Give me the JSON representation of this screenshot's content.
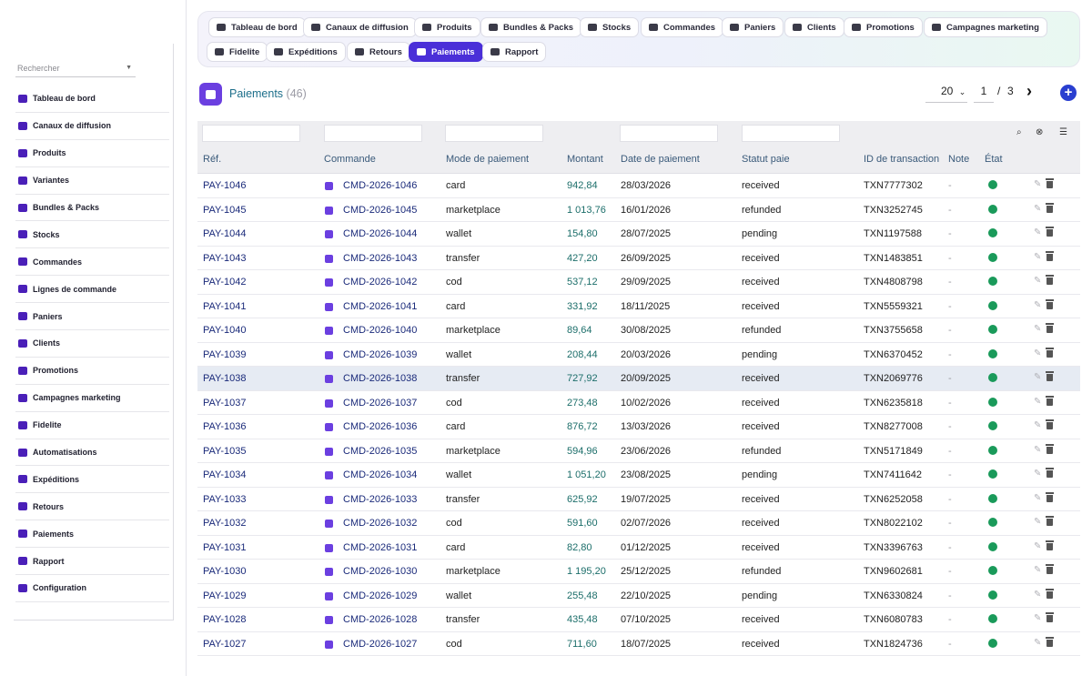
{
  "sidebar": {
    "search_placeholder": "Rechercher",
    "items": [
      {
        "label": "Tableau de bord",
        "icon": "dashboard-icon"
      },
      {
        "label": "Canaux de diffusion",
        "icon": "channels-icon"
      },
      {
        "label": "Produits",
        "icon": "products-icon"
      },
      {
        "label": "Variantes",
        "icon": "variants-icon"
      },
      {
        "label": "Bundles & Packs",
        "icon": "bundles-icon"
      },
      {
        "label": "Stocks",
        "icon": "stocks-icon"
      },
      {
        "label": "Commandes",
        "icon": "cart-icon"
      },
      {
        "label": "Lignes de commande",
        "icon": "list-icon"
      },
      {
        "label": "Paniers",
        "icon": "basket-icon"
      },
      {
        "label": "Clients",
        "icon": "user-icon"
      },
      {
        "label": "Promotions",
        "icon": "tag-icon"
      },
      {
        "label": "Campagnes marketing",
        "icon": "megaphone-icon"
      },
      {
        "label": "Fidelite",
        "icon": "award-icon"
      },
      {
        "label": "Automatisations",
        "icon": "robot-icon"
      },
      {
        "label": "Expéditions",
        "icon": "truck-icon"
      },
      {
        "label": "Retours",
        "icon": "undo-icon"
      },
      {
        "label": "Paiements",
        "icon": "credit-card-icon"
      },
      {
        "label": "Rapport",
        "icon": "chart-pie-icon"
      },
      {
        "label": "Configuration",
        "icon": "gear-icon"
      }
    ]
  },
  "tabs": [
    {
      "label": "Tableau de bord",
      "icon": "dashboard-icon"
    },
    {
      "label": "Canaux de diffusion",
      "icon": "channels-icon"
    },
    {
      "label": "Produits",
      "icon": "products-icon"
    },
    {
      "label": "Bundles & Packs",
      "icon": "bundles-icon"
    },
    {
      "label": "Stocks",
      "icon": "stocks-icon"
    },
    {
      "label": "Commandes",
      "icon": "cart-icon"
    },
    {
      "label": "Paniers",
      "icon": "basket-icon"
    },
    {
      "label": "Clients",
      "icon": "user-icon"
    },
    {
      "label": "Promotions",
      "icon": "tag-icon"
    },
    {
      "label": "Campagnes marketing",
      "icon": "megaphone-icon"
    },
    {
      "label": "Fidelite",
      "icon": "award-icon"
    },
    {
      "label": "Expéditions",
      "icon": "truck-icon"
    },
    {
      "label": "Retours",
      "icon": "undo-icon"
    },
    {
      "label": "Paiements",
      "icon": "credit-card-icon",
      "active": true
    },
    {
      "label": "Rapport",
      "icon": "chart-pie-icon"
    }
  ],
  "header": {
    "title": "Paiements",
    "count": "(46)",
    "per_page": "20",
    "page_current": "1",
    "page_sep": "/",
    "page_total": "3",
    "next": "›",
    "add": "+"
  },
  "table": {
    "columns": [
      "Réf.",
      "Commande",
      "Mode de paiement",
      "Montant",
      "Date de paiement",
      "Statut paie",
      "ID de transaction",
      "Note",
      "État"
    ],
    "rows": [
      {
        "ref": "PAY-1046",
        "order": "CMD-2026-1046",
        "mode": "card",
        "amount": "942,84",
        "date": "28/03/2026",
        "status": "received",
        "txn": "TXN7777302",
        "note": "-"
      },
      {
        "ref": "PAY-1045",
        "order": "CMD-2026-1045",
        "mode": "marketplace",
        "amount": "1 013,76",
        "date": "16/01/2026",
        "status": "refunded",
        "txn": "TXN3252745",
        "note": "-"
      },
      {
        "ref": "PAY-1044",
        "order": "CMD-2026-1044",
        "mode": "wallet",
        "amount": "154,80",
        "date": "28/07/2025",
        "status": "pending",
        "txn": "TXN1197588",
        "note": "-"
      },
      {
        "ref": "PAY-1043",
        "order": "CMD-2026-1043",
        "mode": "transfer",
        "amount": "427,20",
        "date": "26/09/2025",
        "status": "received",
        "txn": "TXN1483851",
        "note": "-"
      },
      {
        "ref": "PAY-1042",
        "order": "CMD-2026-1042",
        "mode": "cod",
        "amount": "537,12",
        "date": "29/09/2025",
        "status": "received",
        "txn": "TXN4808798",
        "note": "-"
      },
      {
        "ref": "PAY-1041",
        "order": "CMD-2026-1041",
        "mode": "card",
        "amount": "331,92",
        "date": "18/11/2025",
        "status": "received",
        "txn": "TXN5559321",
        "note": "-"
      },
      {
        "ref": "PAY-1040",
        "order": "CMD-2026-1040",
        "mode": "marketplace",
        "amount": "89,64",
        "date": "30/08/2025",
        "status": "refunded",
        "txn": "TXN3755658",
        "note": "-"
      },
      {
        "ref": "PAY-1039",
        "order": "CMD-2026-1039",
        "mode": "wallet",
        "amount": "208,44",
        "date": "20/03/2026",
        "status": "pending",
        "txn": "TXN6370452",
        "note": "-"
      },
      {
        "ref": "PAY-1038",
        "order": "CMD-2026-1038",
        "mode": "transfer",
        "amount": "727,92",
        "date": "20/09/2025",
        "status": "received",
        "txn": "TXN2069776",
        "note": "-",
        "highlight": true
      },
      {
        "ref": "PAY-1037",
        "order": "CMD-2026-1037",
        "mode": "cod",
        "amount": "273,48",
        "date": "10/02/2026",
        "status": "received",
        "txn": "TXN6235818",
        "note": "-"
      },
      {
        "ref": "PAY-1036",
        "order": "CMD-2026-1036",
        "mode": "card",
        "amount": "876,72",
        "date": "13/03/2026",
        "status": "received",
        "txn": "TXN8277008",
        "note": "-"
      },
      {
        "ref": "PAY-1035",
        "order": "CMD-2026-1035",
        "mode": "marketplace",
        "amount": "594,96",
        "date": "23/06/2026",
        "status": "refunded",
        "txn": "TXN5171849",
        "note": "-"
      },
      {
        "ref": "PAY-1034",
        "order": "CMD-2026-1034",
        "mode": "wallet",
        "amount": "1 051,20",
        "date": "23/08/2025",
        "status": "pending",
        "txn": "TXN7411642",
        "note": "-"
      },
      {
        "ref": "PAY-1033",
        "order": "CMD-2026-1033",
        "mode": "transfer",
        "amount": "625,92",
        "date": "19/07/2025",
        "status": "received",
        "txn": "TXN6252058",
        "note": "-"
      },
      {
        "ref": "PAY-1032",
        "order": "CMD-2026-1032",
        "mode": "cod",
        "amount": "591,60",
        "date": "02/07/2026",
        "status": "received",
        "txn": "TXN8022102",
        "note": "-"
      },
      {
        "ref": "PAY-1031",
        "order": "CMD-2026-1031",
        "mode": "card",
        "amount": "82,80",
        "date": "01/12/2025",
        "status": "received",
        "txn": "TXN3396763",
        "note": "-"
      },
      {
        "ref": "PAY-1030",
        "order": "CMD-2026-1030",
        "mode": "marketplace",
        "amount": "1 195,20",
        "date": "25/12/2025",
        "status": "refunded",
        "txn": "TXN9602681",
        "note": "-"
      },
      {
        "ref": "PAY-1029",
        "order": "CMD-2026-1029",
        "mode": "wallet",
        "amount": "255,48",
        "date": "22/10/2025",
        "status": "pending",
        "txn": "TXN6330824",
        "note": "-"
      },
      {
        "ref": "PAY-1028",
        "order": "CMD-2026-1028",
        "mode": "transfer",
        "amount": "435,48",
        "date": "07/10/2025",
        "status": "received",
        "txn": "TXN6080783",
        "note": "-"
      },
      {
        "ref": "PAY-1027",
        "order": "CMD-2026-1027",
        "mode": "cod",
        "amount": "711,60",
        "date": "18/07/2025",
        "status": "received",
        "txn": "TXN1824736",
        "note": "-"
      }
    ]
  },
  "colors": {
    "accent": "#4a2fd8",
    "brand_purple": "#6b3fe0",
    "state_green": "#1a9a5a",
    "link": "#1a2a7a",
    "amount": "#1c6e6a"
  }
}
